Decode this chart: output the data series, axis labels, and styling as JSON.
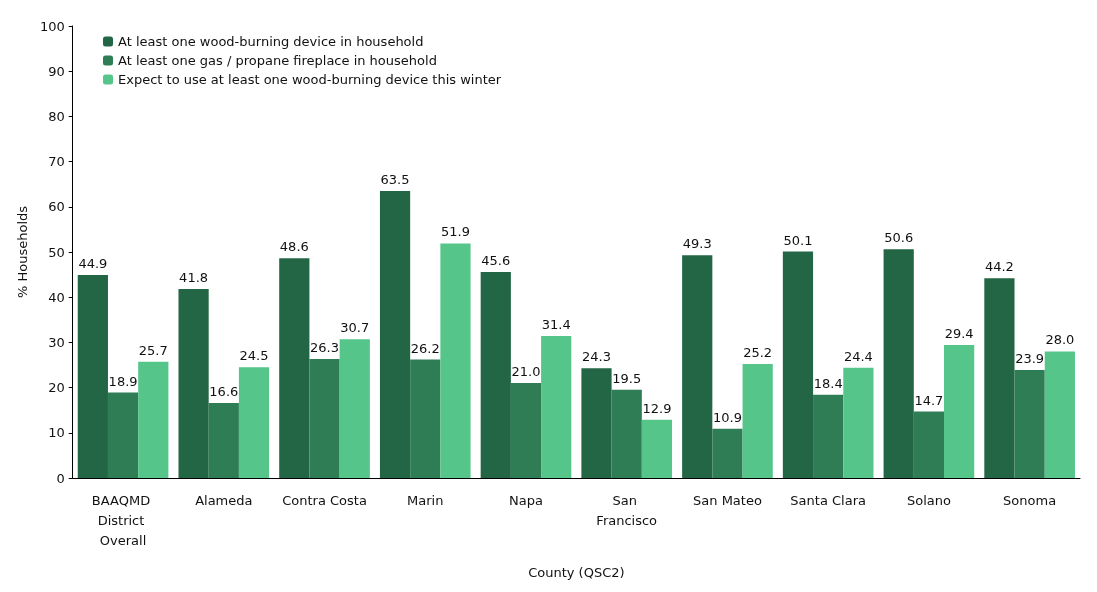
{
  "chart_data": {
    "type": "bar",
    "xlabel": "County (QSC2)",
    "ylabel": "% Households",
    "categories": [
      "BAAQMD District Overall",
      "Alameda",
      "Contra Costa",
      "Marin",
      "Napa",
      "San Francisco",
      "San Mateo",
      "Santa Clara",
      "Solano",
      "Sonoma"
    ],
    "series": [
      {
        "name": "At least one wood-burning device in household",
        "color": "#236645",
        "values": [
          44.9,
          41.8,
          48.6,
          63.5,
          45.6,
          24.3,
          49.3,
          50.1,
          50.6,
          44.2
        ],
        "value_labels": [
          "44.9",
          "41.8",
          "48.6",
          "63.5",
          "45.6",
          "24.3",
          "49.3",
          "50.1",
          "50.6",
          "44.2"
        ]
      },
      {
        "name": "At least one gas / propane fireplace in household",
        "color": "#2f7d55",
        "values": [
          18.9,
          16.6,
          26.3,
          26.2,
          21.0,
          19.5,
          10.9,
          18.4,
          14.7,
          23.9
        ],
        "value_labels": [
          "18.9",
          "16.6",
          "26.3",
          "26.2",
          "21.0",
          "19.5",
          "10.9",
          "18.4",
          "14.7",
          "23.9"
        ]
      },
      {
        "name": "Expect to use at least one wood-burning device this winter",
        "color": "#55c58a",
        "values": [
          25.7,
          24.5,
          30.7,
          51.9,
          31.4,
          12.9,
          25.2,
          24.4,
          29.4,
          28.0
        ],
        "value_labels": [
          "25.7",
          "24.5",
          "30.7",
          "51.9",
          "31.4",
          "12.9",
          "25.2",
          "24.4",
          "29.4",
          "28.0"
        ]
      }
    ],
    "ylim": [
      0,
      100
    ],
    "yticks": [
      0,
      10,
      20,
      30,
      40,
      50,
      60,
      70,
      80,
      90,
      100
    ],
    "grid": false,
    "legend": "top left"
  }
}
